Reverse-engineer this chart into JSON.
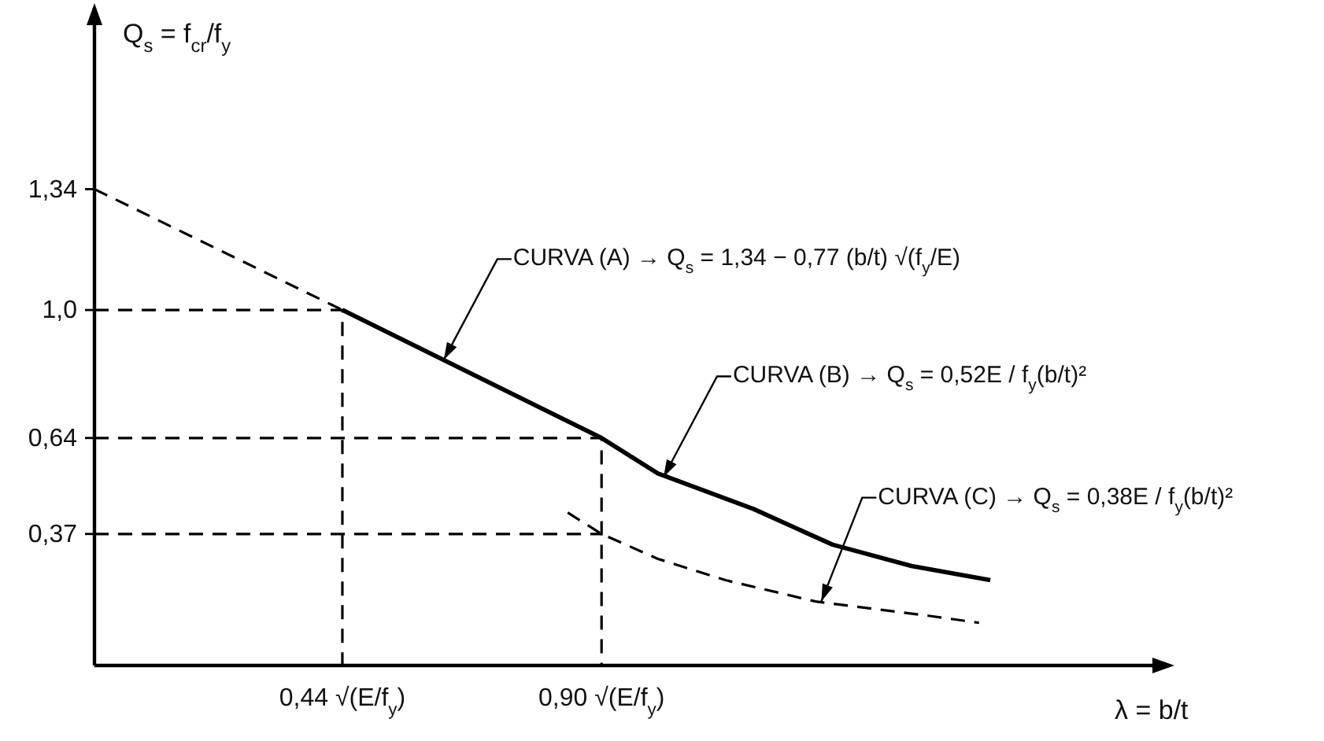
{
  "chart_data": {
    "type": "line",
    "xlabel": "λ = b/t",
    "ylabel": "Q$_{s}$ = f$_{cr}$/f$_{y}$",
    "xlim": [
      0,
      1.9
    ],
    "ylim": [
      0,
      1.85
    ],
    "xticks": [
      {
        "value": 0.44,
        "label": "0,44 √(E/f$_{y}$)"
      },
      {
        "value": 0.9,
        "label": "0,90 √(E/f$_{y}$)"
      }
    ],
    "yticks": [
      {
        "value": 0.37,
        "label": "0,37"
      },
      {
        "value": 0.64,
        "label": "0,64"
      },
      {
        "value": 1.0,
        "label": "1,0"
      },
      {
        "value": 1.34,
        "label": "1,34"
      }
    ],
    "series": [
      {
        "color": "#000000",
        "line_style": "dashed",
        "x": [
          0,
          0.44
        ],
        "values": [
          1.34,
          1.0
        ]
      },
      {
        "color": "#000000",
        "line_style": "solid",
        "x": [
          0.44,
          0.9,
          1.0,
          1.17,
          1.31,
          1.45,
          1.59
        ],
        "values": [
          1.0,
          0.64,
          0.54,
          0.44,
          0.34,
          0.28,
          0.24
        ]
      },
      {
        "color": "#000000",
        "line_style": "dashed",
        "x": [
          0.84,
          0.9,
          1.0,
          1.12,
          1.28,
          1.48,
          1.57
        ],
        "values": [
          0.43,
          0.37,
          0.3,
          0.24,
          0.18,
          0.14,
          0.12
        ]
      },
      {
        "color": "#000000",
        "line_style": "dashed",
        "x": [
          0,
          0.44,
          0.44
        ],
        "values": [
          1.0,
          1.0,
          0
        ]
      },
      {
        "color": "#000000",
        "line_style": "dashed",
        "x": [
          0,
          0.9,
          0.9
        ],
        "values": [
          0.64,
          0.64,
          0
        ]
      },
      {
        "color": "#000000",
        "line_style": "dashed",
        "x": [
          0,
          0.9
        ],
        "values": [
          0.37,
          0.37
        ]
      }
    ],
    "annotations": [
      {
        "text": "CURVA (A) → Q$_{s}$ = 1,34 − 0,77 (b/t) √(f$_{y}$/E)",
        "x": 0.62,
        "y": 0.86
      },
      {
        "text": "CURVA (B) → Q$_{s}$ = 0,52E / f$_{y}$(b/t)²",
        "x": 1.01,
        "y": 0.53
      },
      {
        "text": "CURVA (C) → Q$_{s}$ = 0,38E / f$_{y}$(b/t)²",
        "x": 1.29,
        "y": 0.18
      }
    ]
  }
}
